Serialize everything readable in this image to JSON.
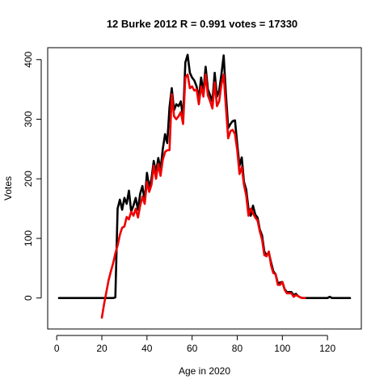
{
  "chart_data": {
    "type": "line",
    "title": "12 Burke 2012 R = 0.991 votes = 17330",
    "xlabel": "Age in 2020",
    "ylabel": "Votes",
    "xlim": [
      -4,
      135
    ],
    "ylim": [
      -52,
      420
    ],
    "xticks": [
      0,
      20,
      40,
      60,
      80,
      100,
      120
    ],
    "yticks": [
      0,
      100,
      200,
      300,
      400
    ],
    "grid": false,
    "series": [
      {
        "color": "#000000",
        "points": [
          [
            1,
            0
          ],
          [
            2,
            0
          ],
          [
            3,
            0
          ],
          [
            4,
            0
          ],
          [
            5,
            0
          ],
          [
            6,
            0
          ],
          [
            7,
            0
          ],
          [
            8,
            0
          ],
          [
            9,
            0
          ],
          [
            10,
            0
          ],
          [
            11,
            0
          ],
          [
            12,
            0
          ],
          [
            13,
            0
          ],
          [
            14,
            0
          ],
          [
            15,
            0
          ],
          [
            16,
            0
          ],
          [
            17,
            0
          ],
          [
            18,
            0
          ],
          [
            19,
            0
          ],
          [
            20,
            0
          ],
          [
            21,
            0
          ],
          [
            22,
            0
          ],
          [
            23,
            0
          ],
          [
            24,
            0
          ],
          [
            25,
            0
          ],
          [
            26,
            1
          ],
          [
            27,
            150
          ],
          [
            28,
            165
          ],
          [
            29,
            148
          ],
          [
            30,
            168
          ],
          [
            31,
            158
          ],
          [
            32,
            180
          ],
          [
            33,
            145
          ],
          [
            34,
            155
          ],
          [
            35,
            168
          ],
          [
            36,
            148
          ],
          [
            37,
            175
          ],
          [
            38,
            188
          ],
          [
            39,
            162
          ],
          [
            40,
            210
          ],
          [
            41,
            185
          ],
          [
            42,
            200
          ],
          [
            43,
            230
          ],
          [
            44,
            210
          ],
          [
            45,
            235
          ],
          [
            46,
            215
          ],
          [
            47,
            250
          ],
          [
            48,
            275
          ],
          [
            49,
            260
          ],
          [
            50,
            320
          ],
          [
            51,
            352
          ],
          [
            52,
            315
          ],
          [
            53,
            325
          ],
          [
            54,
            322
          ],
          [
            55,
            330
          ],
          [
            56,
            302
          ],
          [
            57,
            395
          ],
          [
            58,
            408
          ],
          [
            59,
            378
          ],
          [
            60,
            370
          ],
          [
            61,
            365
          ],
          [
            62,
            355
          ],
          [
            63,
            335
          ],
          [
            64,
            370
          ],
          [
            65,
            345
          ],
          [
            66,
            388
          ],
          [
            67,
            350
          ],
          [
            68,
            340
          ],
          [
            69,
            330
          ],
          [
            70,
            378
          ],
          [
            71,
            338
          ],
          [
            72,
            348
          ],
          [
            73,
            375
          ],
          [
            74,
            407
          ],
          [
            75,
            342
          ],
          [
            76,
            285
          ],
          [
            77,
            292
          ],
          [
            78,
            297
          ],
          [
            79,
            298
          ],
          [
            80,
            258
          ],
          [
            81,
            222
          ],
          [
            82,
            236
          ],
          [
            83,
            195
          ],
          [
            84,
            182
          ],
          [
            85,
            150
          ],
          [
            86,
            138
          ],
          [
            87,
            155
          ],
          [
            88,
            140
          ],
          [
            89,
            135
          ],
          [
            90,
            115
          ],
          [
            91,
            105
          ],
          [
            92,
            78
          ],
          [
            93,
            72
          ],
          [
            94,
            76
          ],
          [
            95,
            60
          ],
          [
            96,
            45
          ],
          [
            97,
            40
          ],
          [
            98,
            25
          ],
          [
            99,
            26
          ],
          [
            100,
            27
          ],
          [
            101,
            15
          ],
          [
            102,
            10
          ],
          [
            103,
            10
          ],
          [
            104,
            10
          ],
          [
            105,
            5
          ],
          [
            106,
            7
          ],
          [
            107,
            3
          ],
          [
            108,
            1
          ],
          [
            109,
            0
          ],
          [
            110,
            0
          ],
          [
            111,
            0
          ],
          [
            112,
            0
          ],
          [
            113,
            0
          ],
          [
            114,
            0
          ],
          [
            115,
            0
          ],
          [
            116,
            0
          ],
          [
            117,
            0
          ],
          [
            118,
            0
          ],
          [
            119,
            0
          ],
          [
            120,
            0
          ],
          [
            121,
            2
          ],
          [
            122,
            0
          ],
          [
            123,
            0
          ],
          [
            124,
            0
          ],
          [
            125,
            0
          ],
          [
            126,
            0
          ],
          [
            127,
            0
          ],
          [
            128,
            0
          ],
          [
            129,
            0
          ],
          [
            130,
            0
          ]
        ]
      },
      {
        "color": "#ee0000",
        "points": [
          [
            20,
            -33
          ],
          [
            21,
            -10
          ],
          [
            22,
            10
          ],
          [
            23,
            30
          ],
          [
            24,
            45
          ],
          [
            25,
            58
          ],
          [
            26,
            75
          ],
          [
            27,
            88
          ],
          [
            28,
            106
          ],
          [
            29,
            118
          ],
          [
            30,
            120
          ],
          [
            31,
            136
          ],
          [
            32,
            132
          ],
          [
            33,
            145
          ],
          [
            34,
            138
          ],
          [
            35,
            150
          ],
          [
            36,
            135
          ],
          [
            37,
            155
          ],
          [
            38,
            170
          ],
          [
            39,
            158
          ],
          [
            40,
            195
          ],
          [
            41,
            178
          ],
          [
            42,
            190
          ],
          [
            43,
            222
          ],
          [
            44,
            200
          ],
          [
            45,
            225
          ],
          [
            46,
            205
          ],
          [
            47,
            232
          ],
          [
            48,
            245
          ],
          [
            49,
            248
          ],
          [
            50,
            248
          ],
          [
            51,
            342
          ],
          [
            52,
            305
          ],
          [
            53,
            300
          ],
          [
            54,
            305
          ],
          [
            55,
            312
          ],
          [
            56,
            292
          ],
          [
            57,
            370
          ],
          [
            58,
            375
          ],
          [
            59,
            352
          ],
          [
            60,
            355
          ],
          [
            61,
            348
          ],
          [
            62,
            350
          ],
          [
            63,
            325
          ],
          [
            64,
            355
          ],
          [
            65,
            338
          ],
          [
            66,
            375
          ],
          [
            67,
            340
          ],
          [
            68,
            330
          ],
          [
            69,
            318
          ],
          [
            70,
            362
          ],
          [
            71,
            322
          ],
          [
            72,
            330
          ],
          [
            73,
            358
          ],
          [
            74,
            375
          ],
          [
            75,
            320
          ],
          [
            76,
            268
          ],
          [
            77,
            280
          ],
          [
            78,
            282
          ],
          [
            79,
            275
          ],
          [
            80,
            248
          ],
          [
            81,
            208
          ],
          [
            82,
            220
          ],
          [
            83,
            190
          ],
          [
            84,
            172
          ],
          [
            85,
            138
          ],
          [
            86,
            150
          ],
          [
            87,
            142
          ],
          [
            88,
            135
          ],
          [
            89,
            130
          ],
          [
            90,
            112
          ],
          [
            91,
            98
          ],
          [
            92,
            72
          ],
          [
            93,
            70
          ],
          [
            94,
            78
          ],
          [
            95,
            55
          ],
          [
            96,
            42
          ],
          [
            97,
            40
          ],
          [
            98,
            22
          ],
          [
            99,
            22
          ],
          [
            100,
            27
          ],
          [
            101,
            14
          ],
          [
            102,
            8
          ],
          [
            103,
            8
          ],
          [
            104,
            8
          ],
          [
            105,
            2
          ],
          [
            106,
            5
          ],
          [
            107,
            3
          ],
          [
            108,
            1
          ],
          [
            109,
            0
          ],
          [
            110,
            0
          ]
        ]
      }
    ]
  }
}
